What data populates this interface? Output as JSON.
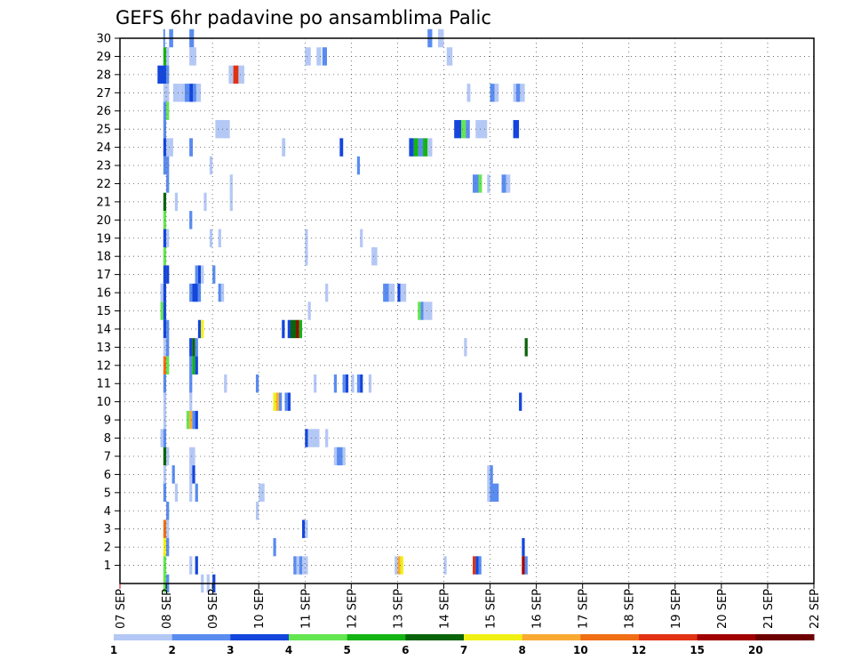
{
  "chart_data": {
    "type": "heatmap",
    "title": "GEFS 6hr padavine po ansamblima Palic",
    "xlabel": "",
    "ylabel": "",
    "x_ticks": [
      "07 SEP",
      "08 SEP",
      "09 SEP",
      "10 SEP",
      "11 SEP",
      "12 SEP",
      "13 SEP",
      "14 SEP",
      "15 SEP",
      "16 SEP",
      "17 SEP",
      "18 SEP",
      "19 SEP",
      "20 SEP",
      "21 SEP",
      "22 SEP"
    ],
    "y_ticks": [
      1,
      2,
      3,
      4,
      5,
      6,
      7,
      8,
      9,
      10,
      11,
      12,
      13,
      14,
      15,
      16,
      17,
      18,
      19,
      20,
      21,
      22,
      23,
      24,
      25,
      26,
      27,
      28,
      29,
      30
    ],
    "x_range_days": [
      0,
      15
    ],
    "y_range": [
      0,
      30
    ],
    "grid": true,
    "colorbar": {
      "labels": [
        "1",
        "2",
        "3",
        "4",
        "5",
        "6",
        "7",
        "8",
        "10",
        "12",
        "15",
        "20"
      ],
      "colors": [
        "#b4c8f5",
        "#5a8cf0",
        "#1446dc",
        "#64e650",
        "#14b414",
        "#0a640a",
        "#f0f014",
        "#faaa32",
        "#f06e14",
        "#e13214",
        "#a00000",
        "#6e0000"
      ]
    },
    "cells": [
      {
        "m": 30,
        "t": [
          [
            3.75,
            3.9,
            2
          ],
          [
            4.25,
            4.6,
            2
          ],
          [
            6.0,
            6.4,
            2
          ],
          [
            26.6,
            27.0,
            2
          ],
          [
            27.5,
            28.0,
            1
          ]
        ]
      },
      {
        "m": 29,
        "t": [
          [
            3.75,
            4.0,
            5
          ],
          [
            4.0,
            4.25,
            1
          ],
          [
            6.0,
            6.6,
            1
          ],
          [
            16.0,
            16.5,
            1
          ],
          [
            17.0,
            17.4,
            1
          ],
          [
            17.5,
            17.9,
            2
          ],
          [
            28.25,
            28.75,
            1
          ]
        ]
      },
      {
        "m": 28,
        "t": [
          [
            3.25,
            4.0,
            3
          ],
          [
            4.0,
            4.25,
            2
          ],
          [
            9.4,
            9.8,
            1
          ],
          [
            9.8,
            10.25,
            10
          ],
          [
            10.25,
            10.75,
            1
          ]
        ]
      },
      {
        "m": 27,
        "t": [
          [
            3.75,
            4.25,
            1
          ],
          [
            4.6,
            5.2,
            1
          ],
          [
            5.2,
            5.6,
            1
          ],
          [
            5.6,
            6.0,
            2
          ],
          [
            6.0,
            6.3,
            3
          ],
          [
            6.3,
            6.6,
            2
          ],
          [
            6.6,
            7.0,
            1
          ],
          [
            30.0,
            30.3,
            1
          ],
          [
            32.0,
            32.4,
            2
          ],
          [
            32.4,
            32.75,
            1
          ],
          [
            34.0,
            34.25,
            1
          ],
          [
            34.25,
            34.6,
            2
          ],
          [
            34.6,
            35.0,
            1
          ]
        ]
      },
      {
        "m": 26,
        "t": [
          [
            3.75,
            4.0,
            2
          ],
          [
            4.0,
            4.25,
            4
          ]
        ]
      },
      {
        "m": 25,
        "t": [
          [
            3.75,
            4.0,
            2
          ],
          [
            8.25,
            9.5,
            1
          ],
          [
            28.9,
            29.5,
            3
          ],
          [
            29.5,
            29.9,
            4
          ],
          [
            29.9,
            30.25,
            2
          ],
          [
            30.75,
            31.75,
            1
          ],
          [
            34.0,
            34.5,
            3
          ]
        ]
      },
      {
        "m": 24,
        "t": [
          [
            3.75,
            4.0,
            3
          ],
          [
            4.0,
            4.25,
            1
          ],
          [
            4.25,
            4.6,
            1
          ],
          [
            6.0,
            6.3,
            2
          ],
          [
            14.0,
            14.3,
            1
          ],
          [
            19.0,
            19.3,
            3
          ],
          [
            25.0,
            25.4,
            3
          ],
          [
            25.4,
            25.8,
            5
          ],
          [
            25.8,
            26.2,
            2
          ],
          [
            26.2,
            26.6,
            5
          ],
          [
            26.6,
            27.0,
            1
          ]
        ]
      },
      {
        "m": 23,
        "t": [
          [
            3.75,
            4.0,
            2
          ],
          [
            4.0,
            4.25,
            2
          ],
          [
            7.75,
            8.0,
            1
          ],
          [
            20.5,
            20.75,
            2
          ]
        ]
      },
      {
        "m": 22,
        "t": [
          [
            4.0,
            4.25,
            2
          ],
          [
            9.5,
            9.75,
            1
          ],
          [
            30.5,
            31.0,
            2
          ],
          [
            31.0,
            31.3,
            4
          ],
          [
            31.75,
            32.0,
            1
          ],
          [
            33.0,
            33.4,
            2
          ],
          [
            33.4,
            33.75,
            1
          ]
        ]
      },
      {
        "m": 21,
        "t": [
          [
            3.75,
            4.0,
            6
          ],
          [
            4.75,
            5.0,
            1
          ],
          [
            7.25,
            7.5,
            1
          ],
          [
            9.5,
            9.75,
            1
          ]
        ]
      },
      {
        "m": 20,
        "t": [
          [
            3.75,
            4.0,
            4
          ],
          [
            6.0,
            6.25,
            2
          ]
        ]
      },
      {
        "m": 19,
        "t": [
          [
            3.75,
            4.0,
            3
          ],
          [
            4.0,
            4.25,
            1
          ],
          [
            7.75,
            8.0,
            1
          ],
          [
            8.5,
            8.75,
            1
          ],
          [
            16.0,
            16.25,
            1
          ],
          [
            20.75,
            21.0,
            1
          ]
        ]
      },
      {
        "m": 18,
        "t": [
          [
            3.75,
            4.0,
            4
          ],
          [
            16.0,
            16.25,
            1
          ],
          [
            21.75,
            22.25,
            1
          ]
        ]
      },
      {
        "m": 17,
        "t": [
          [
            3.75,
            4.0,
            3
          ],
          [
            4.0,
            4.25,
            3
          ],
          [
            6.5,
            6.75,
            2
          ],
          [
            6.75,
            7.0,
            3
          ],
          [
            7.0,
            7.25,
            1
          ],
          [
            8.0,
            8.25,
            2
          ]
        ]
      },
      {
        "m": 16,
        "t": [
          [
            3.5,
            3.75,
            1
          ],
          [
            3.75,
            4.0,
            3
          ],
          [
            6.0,
            6.25,
            2
          ],
          [
            6.25,
            6.75,
            3
          ],
          [
            6.75,
            7.0,
            2
          ],
          [
            8.5,
            8.75,
            2
          ],
          [
            8.75,
            9.0,
            1
          ],
          [
            17.75,
            18.0,
            1
          ],
          [
            22.75,
            23.25,
            2
          ],
          [
            23.25,
            23.75,
            1
          ],
          [
            24.0,
            24.25,
            3
          ],
          [
            24.25,
            24.75,
            1
          ]
        ]
      },
      {
        "m": 15,
        "t": [
          [
            3.5,
            3.75,
            4
          ],
          [
            3.75,
            4.0,
            3
          ],
          [
            16.25,
            16.5,
            1
          ],
          [
            25.75,
            26.0,
            4
          ],
          [
            26.0,
            26.25,
            2
          ],
          [
            26.25,
            26.5,
            1
          ],
          [
            26.5,
            27.0,
            1
          ]
        ]
      },
      {
        "m": 14,
        "t": [
          [
            3.75,
            4.0,
            3
          ],
          [
            4.0,
            4.25,
            2
          ],
          [
            6.75,
            7.0,
            3
          ],
          [
            7.0,
            7.25,
            7
          ],
          [
            14.0,
            14.25,
            3
          ],
          [
            14.5,
            14.75,
            3
          ],
          [
            14.75,
            15.25,
            6
          ],
          [
            15.25,
            15.5,
            11
          ],
          [
            15.5,
            15.75,
            5
          ]
        ]
      },
      {
        "m": 13,
        "t": [
          [
            3.75,
            4.0,
            1
          ],
          [
            4.0,
            4.25,
            2
          ],
          [
            6.0,
            6.25,
            3
          ],
          [
            6.25,
            6.5,
            6
          ],
          [
            6.5,
            6.75,
            2
          ],
          [
            29.75,
            30.0,
            1
          ],
          [
            35.0,
            35.25,
            6
          ]
        ]
      },
      {
        "m": 12,
        "t": [
          [
            3.75,
            4.0,
            9
          ],
          [
            4.0,
            4.25,
            4
          ],
          [
            6.0,
            6.25,
            2
          ],
          [
            6.25,
            6.5,
            5
          ],
          [
            6.5,
            6.75,
            3
          ]
        ]
      },
      {
        "m": 11,
        "t": [
          [
            3.75,
            4.0,
            2
          ],
          [
            6.0,
            6.25,
            2
          ],
          [
            9.0,
            9.25,
            1
          ],
          [
            11.75,
            12.0,
            2
          ],
          [
            16.75,
            17.0,
            1
          ],
          [
            18.5,
            18.75,
            2
          ],
          [
            19.25,
            19.5,
            2
          ],
          [
            19.5,
            19.75,
            3
          ],
          [
            20.0,
            20.25,
            1
          ],
          [
            20.5,
            20.75,
            2
          ],
          [
            20.75,
            21.0,
            3
          ],
          [
            21.5,
            21.75,
            1
          ]
        ]
      },
      {
        "m": 10,
        "t": [
          [
            3.75,
            4.0,
            1
          ],
          [
            6.0,
            6.25,
            1
          ],
          [
            13.25,
            13.5,
            7
          ],
          [
            13.5,
            13.75,
            8
          ],
          [
            13.75,
            14.0,
            2
          ],
          [
            14.25,
            14.5,
            2
          ],
          [
            14.5,
            14.75,
            3
          ],
          [
            34.5,
            34.75,
            3
          ]
        ]
      },
      {
        "m": 9,
        "t": [
          [
            3.75,
            4.0,
            1
          ],
          [
            5.75,
            6.0,
            4
          ],
          [
            6.0,
            6.25,
            8
          ],
          [
            6.25,
            6.5,
            2
          ],
          [
            6.5,
            6.75,
            3
          ]
        ]
      },
      {
        "m": 8,
        "t": [
          [
            3.5,
            3.75,
            1
          ],
          [
            3.75,
            4.0,
            2
          ],
          [
            16.0,
            16.25,
            3
          ],
          [
            16.25,
            17.25,
            1
          ],
          [
            17.75,
            18.0,
            1
          ]
        ]
      },
      {
        "m": 7,
        "t": [
          [
            3.75,
            4.0,
            6
          ],
          [
            4.0,
            4.25,
            1
          ],
          [
            6.0,
            6.5,
            1
          ],
          [
            18.5,
            18.75,
            1
          ],
          [
            18.75,
            19.25,
            2
          ],
          [
            19.25,
            19.5,
            1
          ]
        ]
      },
      {
        "m": 6,
        "t": [
          [
            3.75,
            4.0,
            1
          ],
          [
            4.5,
            4.75,
            2
          ],
          [
            6.0,
            6.25,
            1
          ],
          [
            6.25,
            6.5,
            3
          ],
          [
            31.75,
            32.0,
            1
          ],
          [
            32.0,
            32.25,
            2
          ]
        ]
      },
      {
        "m": 5,
        "t": [
          [
            3.75,
            4.0,
            2
          ],
          [
            4.75,
            5.0,
            1
          ],
          [
            6.0,
            6.25,
            1
          ],
          [
            6.5,
            6.75,
            2
          ],
          [
            12.0,
            12.5,
            1
          ],
          [
            31.75,
            32.0,
            1
          ],
          [
            32.0,
            32.75,
            2
          ]
        ]
      },
      {
        "m": 4,
        "t": [
          [
            4.0,
            4.25,
            2
          ],
          [
            11.75,
            12.0,
            1
          ]
        ]
      },
      {
        "m": 3,
        "t": [
          [
            3.75,
            4.0,
            9
          ],
          [
            4.0,
            4.25,
            1
          ],
          [
            15.75,
            16.0,
            3
          ],
          [
            16.0,
            16.25,
            1
          ]
        ]
      },
      {
        "m": 2,
        "t": [
          [
            3.75,
            4.0,
            7
          ],
          [
            4.0,
            4.25,
            2
          ],
          [
            13.25,
            13.5,
            2
          ],
          [
            34.75,
            35.0,
            3
          ]
        ]
      },
      {
        "m": 1,
        "t": [
          [
            3.75,
            4.0,
            4
          ],
          [
            6.0,
            6.25,
            1
          ],
          [
            16.0,
            16.25,
            1
          ],
          [
            23.75,
            24.0,
            1
          ],
          [
            24.0,
            24.25,
            8
          ],
          [
            24.25,
            24.5,
            7
          ],
          [
            28.0,
            28.25,
            1
          ],
          [
            30.5,
            30.75,
            10
          ],
          [
            30.75,
            31.0,
            3
          ],
          [
            31.0,
            31.25,
            2
          ]
        ]
      },
      {
        "m": 1,
        "t": [
          [
            6.5,
            6.75,
            3
          ],
          [
            15.0,
            15.25,
            2
          ],
          [
            15.25,
            15.5,
            1
          ],
          [
            15.5,
            15.75,
            2
          ],
          [
            15.75,
            16.0,
            1
          ],
          [
            34.75,
            35.0,
            11
          ],
          [
            35.0,
            35.25,
            2
          ]
        ]
      },
      {
        "m": 0,
        "t": [
          [
            3.75,
            4.0,
            4
          ],
          [
            4.0,
            4.25,
            2
          ],
          [
            7.0,
            7.25,
            1
          ],
          [
            7.5,
            7.75,
            1
          ],
          [
            8.0,
            8.25,
            3
          ]
        ]
      }
    ]
  }
}
